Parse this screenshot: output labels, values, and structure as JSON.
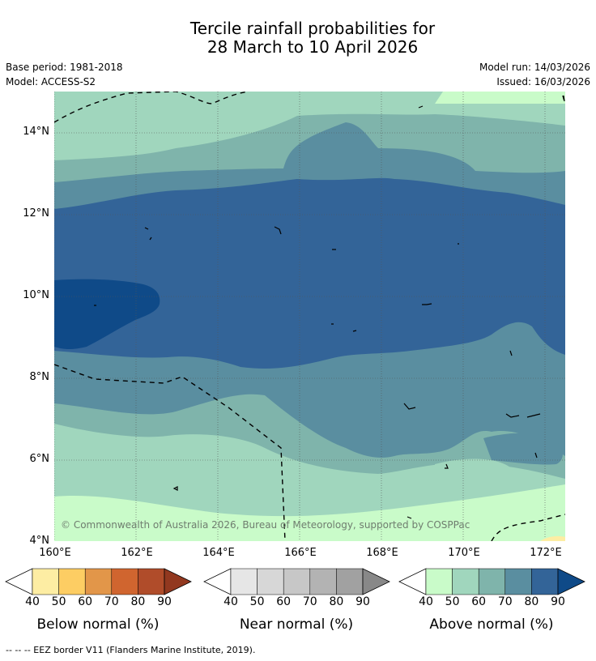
{
  "title_line1": "Tercile rainfall probabilities for",
  "title_line2": "28 March to 10 April 2026",
  "base_period": "Base period: 1981-2018",
  "model": "Model: ACCESS-S2",
  "model_run": "Model run: 14/03/2026",
  "issued": "Issued: 16/03/2026",
  "map": {
    "lon_range": [
      160,
      172.5
    ],
    "lat_range": [
      4,
      15
    ],
    "lat_ticks": [
      {
        "value": 14,
        "label": "14°N"
      },
      {
        "value": 12,
        "label": "12°N"
      },
      {
        "value": 10,
        "label": "10°N"
      },
      {
        "value": 8,
        "label": "8°N"
      },
      {
        "value": 6,
        "label": "6°N"
      },
      {
        "value": 4,
        "label": "4°N"
      }
    ],
    "lon_ticks": [
      {
        "value": 160,
        "label": "160°E"
      },
      {
        "value": 162,
        "label": "162°E"
      },
      {
        "value": 164,
        "label": "164°E"
      },
      {
        "value": 166,
        "label": "166°E"
      },
      {
        "value": 168,
        "label": "168°E"
      },
      {
        "value": 170,
        "label": "170°E"
      },
      {
        "value": 172,
        "label": "172°E"
      }
    ],
    "copyright": "© Commonwealth of Australia 2026, Bureau of Meteorology, supported by COSPPac"
  },
  "colorbars": [
    {
      "name": "below",
      "label": "Below normal (%)",
      "ticks": [
        "40",
        "50",
        "60",
        "70",
        "80",
        "90"
      ],
      "under": "#ffffff",
      "colors": [
        "#fdeda3",
        "#fdcd63",
        "#e29649",
        "#d0652f",
        "#b04c2a"
      ],
      "over": "#92381f"
    },
    {
      "name": "near",
      "label": "Near normal (%)",
      "ticks": [
        "40",
        "50",
        "60",
        "70",
        "80",
        "90"
      ],
      "under": "#ffffff",
      "colors": [
        "#e6e6e6",
        "#d7d7d7",
        "#c7c7c7",
        "#b3b3b3",
        "#a1a1a1"
      ],
      "over": "#888888"
    },
    {
      "name": "above",
      "label": "Above normal (%)",
      "ticks": [
        "40",
        "50",
        "60",
        "70",
        "80",
        "90"
      ],
      "under": "#ffffff",
      "colors": [
        "#c9fbc9",
        "#a0d6bd",
        "#7fb4ab",
        "#5a8ea0",
        "#336498"
      ],
      "over": "#0f4a88"
    }
  ],
  "footnote": "-- -- -- EEZ border V11 (Flanders Marine Institute, 2019)."
}
